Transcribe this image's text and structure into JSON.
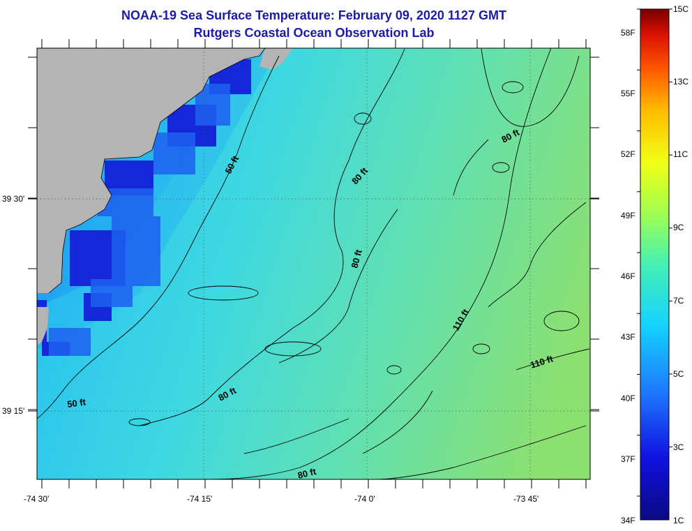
{
  "title_line1": "NOAA-19 Sea Surface Temperature:  February 09, 2020 1127 GMT",
  "title_line2": "Rutgers Coastal Ocean Observation Lab",
  "lat_labels": [
    "39 30'",
    "39 15'"
  ],
  "lon_labels": [
    "-74 30'",
    "-74 15'",
    "-74 0'",
    "-73 45'"
  ],
  "depth_labels": [
    "50 ft",
    "50 ft",
    "80 ft",
    "80 ft",
    "80 ft",
    "80 ft",
    "80 ft",
    "110 ft",
    "110 ft"
  ],
  "colorbar": {
    "celsius": [
      "15C",
      "13C",
      "11C",
      "9C",
      "7C",
      "5C",
      "3C",
      "1C"
    ],
    "fahrenheit": [
      "58F",
      "55F",
      "52F",
      "49F",
      "46F",
      "43F",
      "40F",
      "37F",
      "34F"
    ],
    "colors": [
      "#0a0a80",
      "#1010e0",
      "#1e78ff",
      "#14d2ff",
      "#46f0b4",
      "#a0ff50",
      "#f0ff14",
      "#ffbe00",
      "#ff5a00",
      "#dc1000",
      "#780000"
    ]
  },
  "colors": {
    "land": "#b4b4b4",
    "ocean_near": "#3cd0f0",
    "ocean_far": "#8ce070",
    "coastal_cold": "#1428d8"
  }
}
